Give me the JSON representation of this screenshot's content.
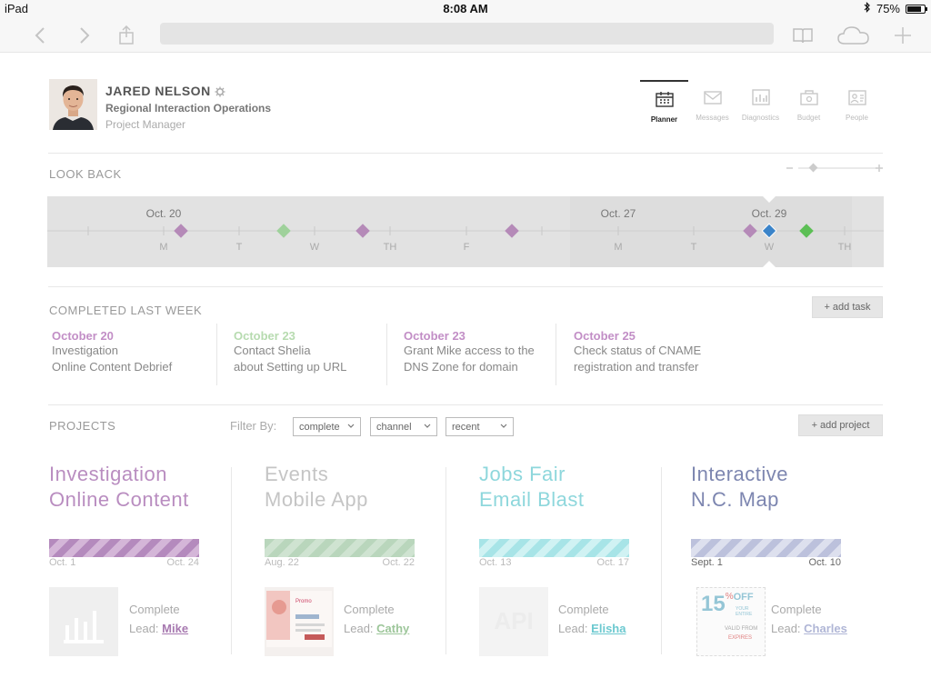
{
  "status_bar": {
    "device": "iPad",
    "time": "8:08 AM",
    "battery": "75%",
    "battery_level": 0.75
  },
  "profile": {
    "name": "JARED NELSON",
    "department": "Regional Interaction Operations",
    "title": "Project Manager"
  },
  "nav": {
    "tabs": [
      {
        "label": "Planner",
        "icon": "calendar-icon",
        "active": true
      },
      {
        "label": "Messages",
        "icon": "envelope-icon",
        "active": false
      },
      {
        "label": "Diagnostics",
        "icon": "chart-icon",
        "active": false
      },
      {
        "label": "Budget",
        "icon": "budget-icon",
        "active": false
      },
      {
        "label": "People",
        "icon": "people-icon",
        "active": false
      }
    ]
  },
  "lookback": {
    "title": "LOOK BACK",
    "date_labels": [
      "Oct. 20",
      "Oct. 27",
      "Oct. 29"
    ],
    "day_labels": [
      "M",
      "T",
      "W",
      "TH",
      "F",
      "M",
      "T",
      "W",
      "TH"
    ],
    "markers_colors": {
      "purple": "#b58ab8",
      "green": "#9fd19b",
      "blue": "#3b84c9",
      "bright_green": "#5cbf55"
    }
  },
  "completed": {
    "title": "COMPLETED LAST WEEK",
    "add_task_label": "add task",
    "tasks": [
      {
        "date": "October 20",
        "line1": "Investigation",
        "line2": "Online Content Debrief",
        "color": "#c28ec6"
      },
      {
        "date": "October 23",
        "line1": "Contact Shelia",
        "line2": "about Setting up URL",
        "color": "#b7dbb0"
      },
      {
        "date": "October 23",
        "line1": "Grant Mike access to the",
        "line2": "DNS Zone for domain",
        "color": "#c28ec6"
      },
      {
        "date": "October 25",
        "line1": "Check status of CNAME",
        "line2": "registration and transfer",
        "color": "#c28ec6"
      }
    ]
  },
  "projects": {
    "title": "PROJECTS",
    "filter_label": "Filter By:",
    "filters": [
      "complete",
      "channel",
      "recent"
    ],
    "add_project_label": "add project",
    "items": [
      {
        "line1": "Investigation",
        "line2": "Online Content",
        "color": "#b98dc0",
        "bar_a": "#b48abd",
        "bar_b": "#d4b6d8",
        "start": "Oct. 1",
        "end": "Oct. 24",
        "status": "Complete",
        "lead_label": "Lead:",
        "lead": "Mike",
        "lead_color": "#a779b0"
      },
      {
        "line1": "Events",
        "line2": "Mobile App",
        "color": "#c5c5c5",
        "bar_a": "#b9d6bc",
        "bar_b": "#cfe3d1",
        "start": "Aug. 22",
        "end": "Oct. 22",
        "status": "Complete",
        "lead_label": "Lead:",
        "lead": "Cathy",
        "lead_color": "#9dc69a"
      },
      {
        "line1": "Jobs Fair",
        "line2": "Email Blast",
        "color": "#8ed7dc",
        "bar_a": "#a7e4e7",
        "bar_b": "#d0f2f3",
        "start": "Oct. 13",
        "end": "Oct. 17",
        "status": "Complete",
        "lead_label": "Lead:",
        "lead": "Elisha",
        "lead_color": "#6cc9d0"
      },
      {
        "line1": "Interactive",
        "line2": "N.C. Map",
        "color": "#7d86b0",
        "bar_a": "#bcc1dc",
        "bar_b": "#dde0ee",
        "start": "Sept. 1",
        "end": "Oct. 10",
        "status": "Complete",
        "lead_label": "Lead:",
        "lead": "Charles",
        "lead_color": "#b0b6d6"
      }
    ],
    "thumb2": {
      "heading": "Promo"
    },
    "thumb3": {
      "text": "API"
    },
    "thumb4": {
      "big": "15",
      "percent": "%",
      "off": "OFF",
      "sub": "YOUR ENTIRE",
      "foot": "VALID FROM",
      "foot2": "EXPIRES"
    }
  }
}
